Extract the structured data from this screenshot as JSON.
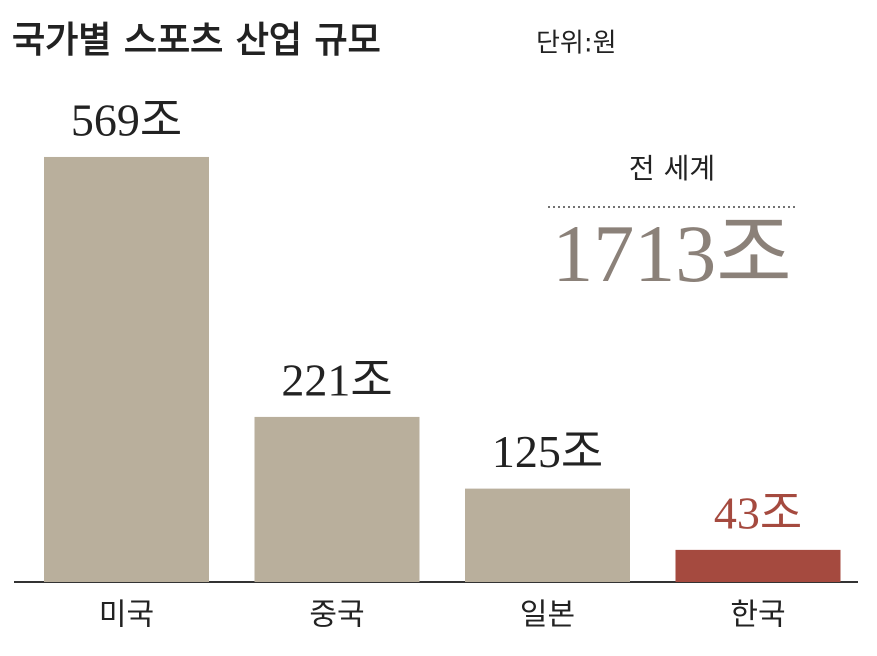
{
  "chart_data": {
    "type": "bar",
    "title": "국가별 스포츠 산업 규모",
    "subtitle": "단위:원",
    "categories": [
      "미국",
      "중국",
      "일본",
      "한국"
    ],
    "values": [
      569,
      221,
      125,
      43
    ],
    "value_labels": [
      "569조",
      "221조",
      "125조",
      "43조"
    ],
    "colors": [
      "#b9af9c",
      "#b9af9c",
      "#b9af9c",
      "#a54a3f"
    ],
    "annotation": {
      "label": "전 세계",
      "text": "1713조"
    }
  }
}
